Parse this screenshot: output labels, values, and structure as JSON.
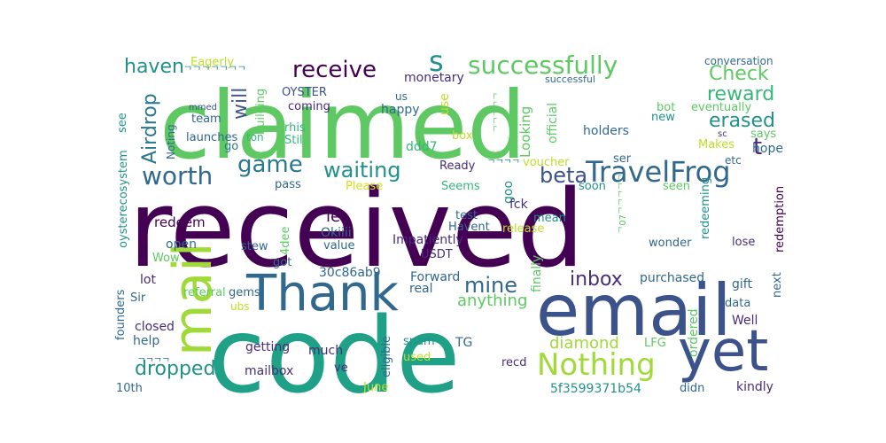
{
  "wordcloud": {
    "palette": [
      "#440154",
      "#3b528b",
      "#21918c",
      "#1fa187",
      "#5ec962",
      "#9fd93a",
      "#bddf26",
      "#d2e21b"
    ],
    "words": [
      {
        "text": "received",
        "color": "#440154"
      },
      {
        "text": "claimed",
        "color": "#5ec962"
      },
      {
        "text": "code",
        "color": "#1fa187"
      },
      {
        "text": "email",
        "color": "#3b528b"
      },
      {
        "text": "yet",
        "color": "#3b528b"
      },
      {
        "text": "Thank",
        "color": "#31688e"
      },
      {
        "text": "mail",
        "color": "#a0da39"
      },
      {
        "text": "Nothing",
        "color": "#a0da39"
      },
      {
        "text": "TravelFrog",
        "color": "#31688e"
      },
      {
        "text": "successfully",
        "color": "#5ec962"
      },
      {
        "text": "receive",
        "color": "#440154"
      },
      {
        "text": "worth",
        "color": "#31688e"
      },
      {
        "text": "waiting",
        "color": "#21918c"
      },
      {
        "text": "game",
        "color": "#2a788e"
      },
      {
        "text": "beta",
        "color": "#3b528b"
      },
      {
        "text": "s",
        "color": "#21918c"
      },
      {
        "text": "t",
        "color": "#482878"
      },
      {
        "text": "erased",
        "color": "#21918c"
      },
      {
        "text": "reward",
        "color": "#35b779"
      },
      {
        "text": "Check",
        "color": "#5ec962"
      },
      {
        "text": "will",
        "color": "#3b528b"
      },
      {
        "text": "Airdrop",
        "color": "#2a788e"
      },
      {
        "text": "haven",
        "color": "#21918c"
      },
      {
        "text": "mine",
        "color": "#31688e"
      },
      {
        "text": "inbox",
        "color": "#472d7b"
      },
      {
        "text": "dropped",
        "color": "#21918c"
      },
      {
        "text": "diamond",
        "color": "#a0da39"
      },
      {
        "text": "anything",
        "color": "#5ec962"
      },
      {
        "text": "let",
        "color": "#440154"
      },
      {
        "text": "Eagerly",
        "color": "#bddf26"
      },
      {
        "text": "monetary",
        "color": "#472d7b"
      },
      {
        "text": "conversation",
        "color": "#31688e"
      },
      {
        "text": "successful",
        "color": "#31688e"
      },
      {
        "text": "OYSTER",
        "color": "#3b528b"
      },
      {
        "text": "building",
        "color": "#5ec962"
      },
      {
        "text": "coming",
        "color": "#482878"
      },
      {
        "text": "rhis",
        "color": "#35b779"
      },
      {
        "text": "Stil",
        "color": "#35b779"
      },
      {
        "text": "happy",
        "color": "#31688e"
      },
      {
        "text": "ddd7",
        "color": "#35b779"
      },
      {
        "text": "box",
        "color": "#bddf26"
      },
      {
        "text": "team",
        "color": "#31688e"
      },
      {
        "text": "launches",
        "color": "#31688e"
      },
      {
        "text": "mmed",
        "color": "#3b528b"
      },
      {
        "text": "see",
        "color": "#21918c"
      },
      {
        "text": "Noting",
        "color": "#31688e"
      },
      {
        "text": "oysterecosystem",
        "color": "#21918c"
      },
      {
        "text": "go",
        "color": "#2a788e"
      },
      {
        "text": "ton",
        "color": "#35b779"
      },
      {
        "text": "us",
        "color": "#31688e"
      },
      {
        "text": "use",
        "color": "#bddf26"
      },
      {
        "text": "official",
        "color": "#5ec962"
      },
      {
        "text": "Looking",
        "color": "#5ec962"
      },
      {
        "text": "bot",
        "color": "#5ec962"
      },
      {
        "text": "new",
        "color": "#21918c"
      },
      {
        "text": "eventually",
        "color": "#5ec962"
      },
      {
        "text": "holders",
        "color": "#31688e"
      },
      {
        "text": "says",
        "color": "#5ec962"
      },
      {
        "text": "sc",
        "color": "#472d7b"
      },
      {
        "text": "hope",
        "color": "#31688e"
      },
      {
        "text": "Makes",
        "color": "#bddf26"
      },
      {
        "text": "etc",
        "color": "#31688e"
      },
      {
        "text": "ser",
        "color": "#31688e"
      },
      {
        "text": "seen",
        "color": "#5ec962"
      },
      {
        "text": "soon",
        "color": "#21918c"
      },
      {
        "text": "voucher",
        "color": "#bddf26"
      },
      {
        "text": "Ready",
        "color": "#472d7b"
      },
      {
        "text": "Seems",
        "color": "#35b779"
      },
      {
        "text": "Please",
        "color": "#d2e21b"
      },
      {
        "text": "pass",
        "color": "#31688e"
      },
      {
        "text": "goo",
        "color": "#21918c"
      },
      {
        "text": "fck",
        "color": "#472d7b"
      },
      {
        "text": "mean",
        "color": "#21918c"
      },
      {
        "text": "test",
        "color": "#31688e"
      },
      {
        "text": "Havent",
        "color": "#31688e"
      },
      {
        "text": "release",
        "color": "#bddf26"
      },
      {
        "text": "Impatiently",
        "color": "#472d7b"
      },
      {
        "text": "USDT",
        "color": "#472d7b"
      },
      {
        "text": "finally",
        "color": "#5ec962"
      },
      {
        "text": "Okiiii",
        "color": "#31688e"
      },
      {
        "text": "value",
        "color": "#31688e"
      },
      {
        "text": "stew",
        "color": "#31688e"
      },
      {
        "text": "4dee",
        "color": "#5ec962"
      },
      {
        "text": "got",
        "color": "#31688e"
      },
      {
        "text": "redeem",
        "color": "#440154"
      },
      {
        "text": "open",
        "color": "#31688e"
      },
      {
        "text": "Wow",
        "color": "#5ec962"
      },
      {
        "text": "lot",
        "color": "#472d7b"
      },
      {
        "text": "30c86ab9",
        "color": "#31688e"
      },
      {
        "text": "referral",
        "color": "#5ec962"
      },
      {
        "text": "gems",
        "color": "#31688e"
      },
      {
        "text": "Sir",
        "color": "#31688e"
      },
      {
        "text": "founders",
        "color": "#31688e"
      },
      {
        "text": "closed",
        "color": "#472d7b"
      },
      {
        "text": "ubs",
        "color": "#bddf26"
      },
      {
        "text": "help",
        "color": "#31688e"
      },
      {
        "text": "Forward",
        "color": "#31688e"
      },
      {
        "text": "real",
        "color": "#31688e"
      },
      {
        "text": "getting",
        "color": "#472d7b"
      },
      {
        "text": "much",
        "color": "#472d7b"
      },
      {
        "text": "spam",
        "color": "#21918c"
      },
      {
        "text": "TG",
        "color": "#31688e"
      },
      {
        "text": "used",
        "color": "#bddf26"
      },
      {
        "text": "eligible",
        "color": "#31688e"
      },
      {
        "text": "mailbox",
        "color": "#472d7b"
      },
      {
        "text": "ve",
        "color": "#472d7b"
      },
      {
        "text": "June",
        "color": "#bddf26"
      },
      {
        "text": "recd",
        "color": "#472d7b"
      },
      {
        "text": "LFG",
        "color": "#5ec962"
      },
      {
        "text": "ordered",
        "color": "#5ec962"
      },
      {
        "text": "purchased",
        "color": "#31688e"
      },
      {
        "text": "wonder",
        "color": "#31688e"
      },
      {
        "text": "redeeming",
        "color": "#21918c"
      },
      {
        "text": "lose",
        "color": "#472d7b"
      },
      {
        "text": "redemption",
        "color": "#440154"
      },
      {
        "text": "gift",
        "color": "#31688e"
      },
      {
        "text": "next",
        "color": "#31688e"
      },
      {
        "text": "data",
        "color": "#31688e"
      },
      {
        "text": "Well",
        "color": "#472d7b"
      },
      {
        "text": "kindly",
        "color": "#472d7b"
      },
      {
        "text": "didn",
        "color": "#31688e"
      },
      {
        "text": "5f3599371b54",
        "color": "#21918c"
      },
      {
        "text": "10th",
        "color": "#31688e"
      },
      {
        "text": "ᄀᄀᄀᄀᄀᄀᄀ",
        "color": "#21918c"
      },
      {
        "text": "ᄀᄀᄀᄀᄀ",
        "color": "#5ec962"
      },
      {
        "text": "ᄀᄀᄀᄀ",
        "color": "#31688e"
      },
      {
        "text": "ᄀᄀᄀᄀ",
        "color": "#21918c"
      },
      {
        "text": "ᄀ07ᄀᄀᄀᄀᄀ",
        "color": "#5ec962"
      }
    ]
  }
}
